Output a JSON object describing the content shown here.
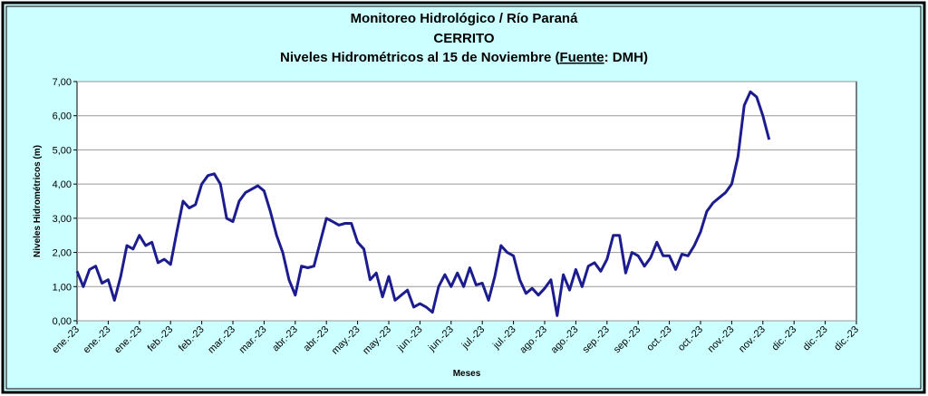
{
  "chart_data": {
    "type": "line",
    "title": [
      "Monitoreo Hidrológico / Río Paraná",
      "CERRITO"
    ],
    "subtitle": [
      "Niveles Hidrométricos al 15 de Noviembre (",
      "Fuente",
      ": DMH)"
    ],
    "y_label": "Niveles Hidrométricos (m)",
    "x_label": "Meses",
    "categories": [
      "ene.-23",
      null,
      null,
      null,
      null,
      "ene.-23",
      null,
      null,
      null,
      null,
      "ene.-23",
      null,
      null,
      null,
      null,
      "feb.-23",
      null,
      null,
      null,
      null,
      "feb.-23",
      null,
      null,
      null,
      null,
      "mar.-23",
      null,
      null,
      null,
      null,
      "mar.-23",
      null,
      null,
      null,
      null,
      "abr.-23",
      null,
      null,
      null,
      null,
      "abr.-23",
      null,
      null,
      null,
      null,
      "may.-23",
      null,
      null,
      null,
      null,
      "may.-23",
      null,
      null,
      null,
      null,
      "jun.-23",
      null,
      null,
      null,
      null,
      "jun.-23",
      null,
      null,
      null,
      null,
      "jul.-23",
      null,
      null,
      null,
      null,
      "jul.-23",
      null,
      null,
      null,
      null,
      "ago.-23",
      null,
      null,
      null,
      null,
      "ago.-23",
      null,
      null,
      null,
      null,
      "sep.-23",
      null,
      null,
      null,
      null,
      "sep.-23",
      null,
      null,
      null,
      null,
      "oct.-23",
      null,
      null,
      null,
      null,
      "oct.-23",
      null,
      null,
      null,
      null,
      "nov.-23",
      null,
      null,
      null,
      null,
      "nov.-23",
      null,
      null,
      null,
      null,
      "dic.-23",
      null,
      null,
      null,
      null,
      "dic.-23",
      null,
      null,
      null,
      null,
      "dic.-23"
    ],
    "series": [
      {
        "name": null,
        "color": "#1c1c8f",
        "values": [
          1.45,
          1.0,
          1.5,
          1.6,
          1.1,
          1.2,
          0.6,
          1.3,
          2.2,
          2.1,
          2.5,
          2.2,
          2.3,
          1.7,
          1.8,
          1.65,
          2.6,
          3.5,
          3.3,
          3.4,
          4.0,
          4.25,
          4.3,
          4.0,
          3.0,
          2.9,
          3.5,
          3.75,
          3.85,
          3.95,
          3.8,
          3.2,
          2.5,
          2.0,
          1.2,
          0.75,
          1.6,
          1.55,
          1.6,
          2.3,
          3.0,
          2.9,
          2.8,
          2.85,
          2.85,
          2.3,
          2.1,
          1.2,
          1.4,
          0.7,
          1.3,
          0.6,
          0.75,
          0.9,
          0.4,
          0.5,
          0.4,
          0.25,
          1.0,
          1.35,
          1.0,
          1.4,
          1.0,
          1.55,
          1.05,
          1.1,
          0.6,
          1.3,
          2.2,
          2.0,
          1.9,
          1.2,
          0.8,
          0.95,
          0.75,
          0.95,
          1.2,
          0.15,
          1.35,
          0.9,
          1.5,
          1.0,
          1.6,
          1.7,
          1.45,
          1.8,
          2.5,
          2.5,
          1.4,
          2.0,
          1.9,
          1.6,
          1.85,
          2.3,
          1.9,
          1.9,
          1.5,
          1.95,
          1.9,
          2.2,
          2.6,
          3.2,
          3.45,
          3.6,
          3.75,
          4.0,
          4.8,
          6.3,
          6.7,
          6.55,
          6.0,
          5.3,
          null,
          null,
          null,
          null,
          null,
          null,
          null,
          null,
          null,
          null,
          null,
          null,
          null,
          null
        ]
      }
    ],
    "ylim": [
      0,
      7
    ],
    "yticks": [
      {
        "value": 0,
        "label": "0,00"
      },
      {
        "value": 1,
        "label": "1,00"
      },
      {
        "value": 2,
        "label": "2,00"
      },
      {
        "value": 3,
        "label": "3,00"
      },
      {
        "value": 4,
        "label": "4,00"
      },
      {
        "value": 5,
        "label": "5,00"
      },
      {
        "value": 6,
        "label": "6,00"
      },
      {
        "value": 7,
        "label": "7,00"
      }
    ],
    "grid": true
  }
}
